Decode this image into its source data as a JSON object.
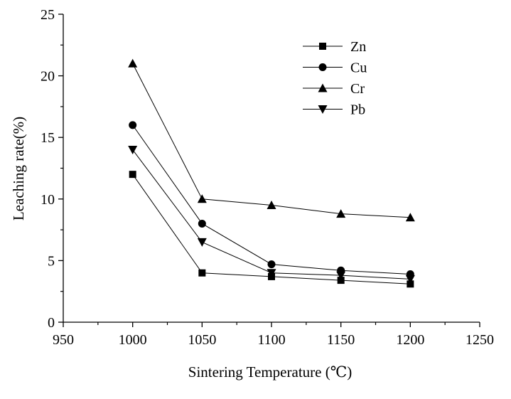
{
  "chart_data": {
    "type": "line",
    "xlabel": "Sintering Temperature (℃)",
    "ylabel": "Leaching rate(%)",
    "xlim": [
      950,
      1250
    ],
    "ylim": [
      0,
      25
    ],
    "x_ticks": [
      950,
      1000,
      1050,
      1100,
      1150,
      1200,
      1250
    ],
    "y_ticks": [
      0,
      5,
      10,
      15,
      20,
      25
    ],
    "grid": false,
    "legend_position": "top-right",
    "x": [
      1000,
      1050,
      1100,
      1150,
      1200
    ],
    "series": [
      {
        "name": "Zn",
        "marker": "square",
        "values": [
          12,
          4,
          3.7,
          3.4,
          3.1
        ]
      },
      {
        "name": "Cu",
        "marker": "circle",
        "values": [
          16,
          8,
          4.7,
          4.2,
          3.9
        ]
      },
      {
        "name": "Cr",
        "marker": "triangle-up",
        "values": [
          21,
          10,
          9.5,
          8.8,
          8.5
        ]
      },
      {
        "name": "Pb",
        "marker": "triangle-down",
        "values": [
          14,
          6.5,
          4,
          3.8,
          3.5
        ]
      }
    ]
  }
}
